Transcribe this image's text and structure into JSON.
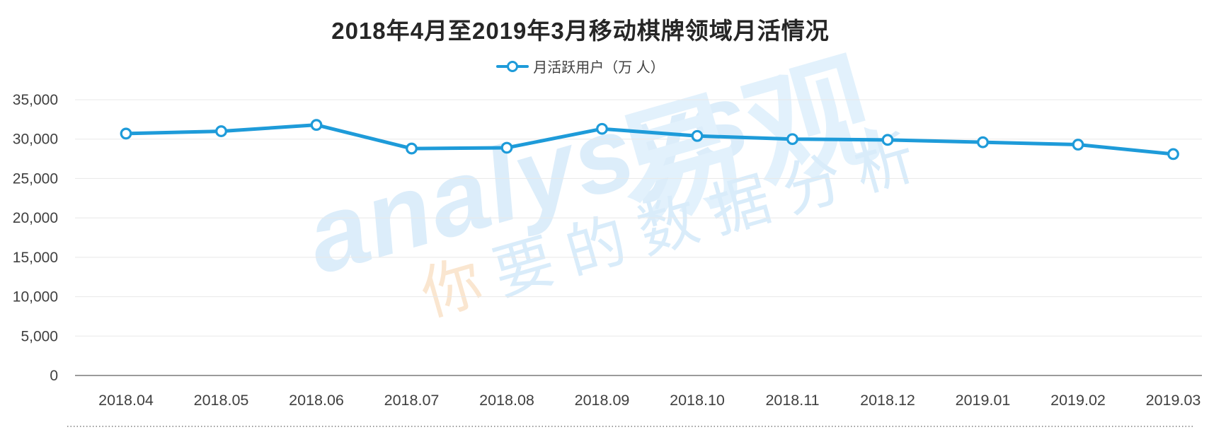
{
  "title": "2018年4月至2019年3月移动棋牌领域月活情况",
  "legend": {
    "label": "月活跃用户（万 人）",
    "position": "top-center",
    "marker": "open-circle-on-line"
  },
  "watermark": {
    "logo_latin": "analysys",
    "logo_cjk": "易观",
    "tagline_head": "你",
    "tagline_rest": "要的数据分析",
    "color_blue": "#DCEDFA",
    "color_orange": "#FAE6D0"
  },
  "colors": {
    "line": "#1E9BD9",
    "marker_fill": "#FFFFFF",
    "title_text": "#262626",
    "axis_text": "#404040",
    "gridline": "#E8E8E8",
    "zero_axis": "#9B9B9B",
    "dotted_divider": "#9E9E9E"
  },
  "chart_data": {
    "type": "line",
    "title": "2018年4月至2019年3月移动棋牌领域月活情况",
    "xlabel": "",
    "ylabel": "",
    "categories": [
      "2018.04",
      "2018.05",
      "2018.06",
      "2018.07",
      "2018.08",
      "2018.09",
      "2018.10",
      "2018.11",
      "2018.12",
      "2019.01",
      "2019.02",
      "2019.03"
    ],
    "series": [
      {
        "name": "月活跃用户（万 人）",
        "values": [
          30700,
          31000,
          31800,
          28800,
          28900,
          31300,
          30400,
          30000,
          29900,
          29600,
          29300,
          28100
        ]
      }
    ],
    "ylim": [
      0,
      35000
    ],
    "y_tick_step": 5000,
    "y_tick_labels": [
      "35,000",
      "30,000",
      "25,000",
      "20,000",
      "15,000",
      "10,000",
      "5,000",
      "0"
    ],
    "grid": "horizontal",
    "legend_position": "top",
    "marker": "open-circle"
  }
}
